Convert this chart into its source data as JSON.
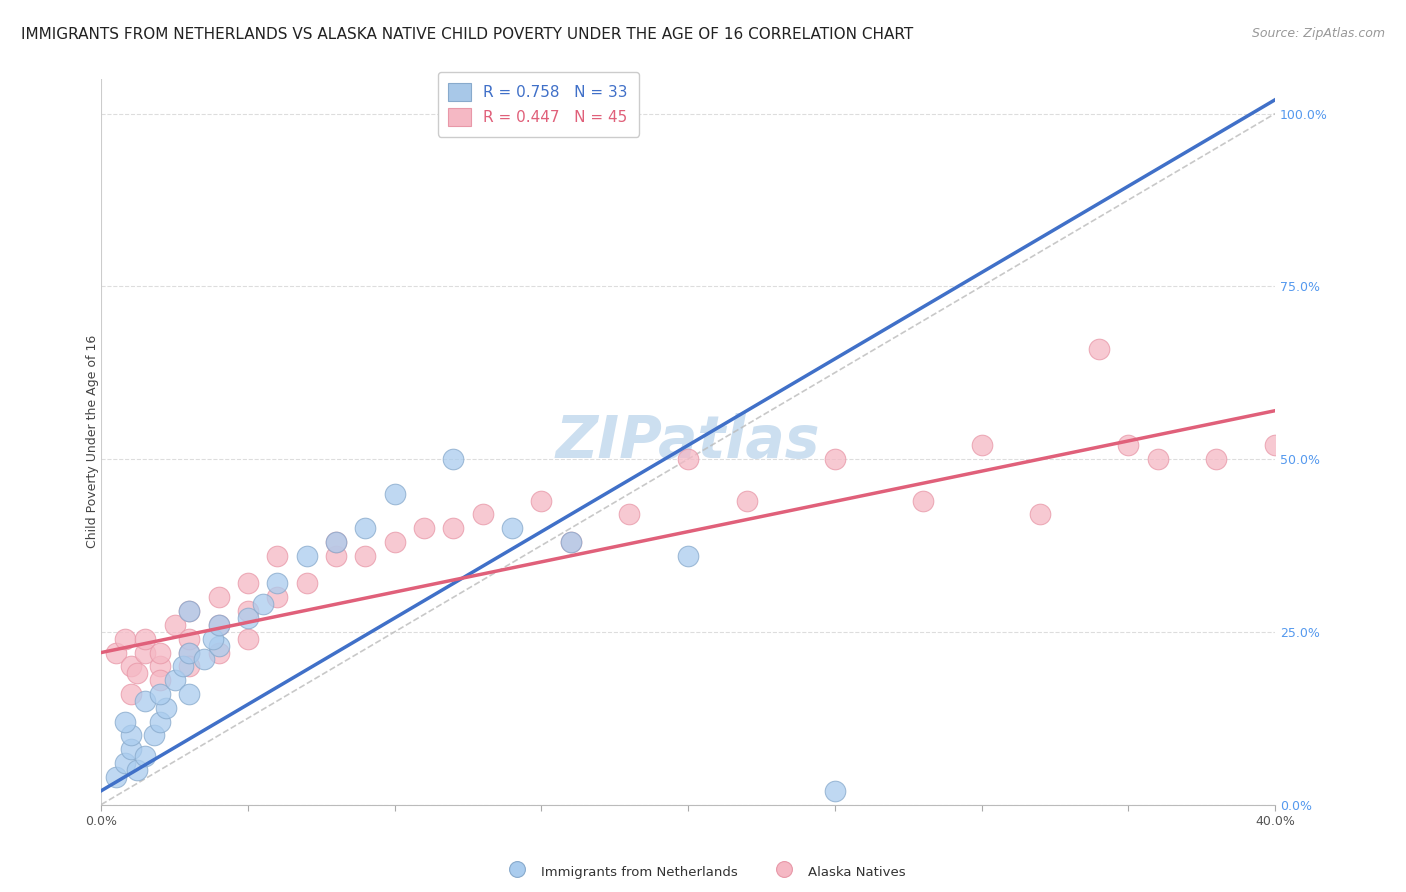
{
  "title": "IMMIGRANTS FROM NETHERLANDS VS ALASKA NATIVE CHILD POVERTY UNDER THE AGE OF 16 CORRELATION CHART",
  "source": "Source: ZipAtlas.com",
  "ylabel": "Child Poverty Under the Age of 16",
  "ylabel_right_ticks": [
    "0.0%",
    "25.0%",
    "50.0%",
    "75.0%",
    "100.0%"
  ],
  "ylabel_right_vals": [
    0.0,
    0.25,
    0.5,
    0.75,
    1.0
  ],
  "legend1_label": "R = 0.758   N = 33",
  "legend2_label": "R = 0.447   N = 45",
  "legend1_color": "#a8c8e8",
  "legend2_color": "#f5b8c4",
  "line1_color": "#4070c8",
  "line2_color": "#e0607a",
  "diag_color": "#bbbbbb",
  "scatter1_color": "#aaccee",
  "scatter2_color": "#f5b8c4",
  "scatter1_edge": "#88aacc",
  "scatter2_edge": "#e898a8",
  "watermark": "ZIPatlas",
  "blue_points_x": [
    0.0005,
    0.0008,
    0.001,
    0.0012,
    0.0015,
    0.001,
    0.0008,
    0.0018,
    0.002,
    0.0022,
    0.0015,
    0.002,
    0.0025,
    0.003,
    0.0028,
    0.003,
    0.0035,
    0.004,
    0.0038,
    0.004,
    0.003,
    0.005,
    0.0055,
    0.006,
    0.007,
    0.008,
    0.009,
    0.01,
    0.012,
    0.014,
    0.016,
    0.02,
    0.025
  ],
  "blue_points_y": [
    0.04,
    0.06,
    0.08,
    0.05,
    0.07,
    0.1,
    0.12,
    0.1,
    0.12,
    0.14,
    0.15,
    0.16,
    0.18,
    0.16,
    0.2,
    0.22,
    0.21,
    0.23,
    0.24,
    0.26,
    0.28,
    0.27,
    0.29,
    0.32,
    0.36,
    0.38,
    0.4,
    0.45,
    0.5,
    0.4,
    0.38,
    0.36,
    0.02
  ],
  "pink_points_x": [
    0.0005,
    0.0008,
    0.001,
    0.001,
    0.0012,
    0.0015,
    0.0015,
    0.002,
    0.002,
    0.002,
    0.0025,
    0.003,
    0.003,
    0.003,
    0.003,
    0.004,
    0.004,
    0.004,
    0.005,
    0.005,
    0.005,
    0.006,
    0.006,
    0.007,
    0.008,
    0.008,
    0.009,
    0.01,
    0.011,
    0.012,
    0.013,
    0.015,
    0.016,
    0.018,
    0.02,
    0.022,
    0.025,
    0.028,
    0.03,
    0.032,
    0.034,
    0.036,
    0.035,
    0.038,
    0.04
  ],
  "pink_points_y": [
    0.22,
    0.24,
    0.2,
    0.16,
    0.19,
    0.22,
    0.24,
    0.2,
    0.22,
    0.18,
    0.26,
    0.22,
    0.24,
    0.28,
    0.2,
    0.26,
    0.3,
    0.22,
    0.24,
    0.28,
    0.32,
    0.3,
    0.36,
    0.32,
    0.36,
    0.38,
    0.36,
    0.38,
    0.4,
    0.4,
    0.42,
    0.44,
    0.38,
    0.42,
    0.5,
    0.44,
    0.5,
    0.44,
    0.52,
    0.42,
    0.66,
    0.5,
    0.52,
    0.5,
    0.52
  ],
  "xlim": [
    0.0,
    0.04
  ],
  "ylim": [
    0.0,
    1.05
  ],
  "blue_line_x0": 0.0,
  "blue_line_y0": 0.02,
  "blue_line_x1": 0.04,
  "blue_line_y1": 1.02,
  "pink_line_x0": 0.0,
  "pink_line_y0": 0.22,
  "pink_line_x1": 0.04,
  "pink_line_y1": 0.57,
  "title_fontsize": 11,
  "source_fontsize": 9,
  "axis_label_fontsize": 9,
  "tick_fontsize": 9,
  "legend_fontsize": 11,
  "watermark_fontsize": 42,
  "watermark_color": "#ccdff0",
  "background_color": "#ffffff",
  "grid_color": "#dddddd",
  "bottom_legend1": "Immigrants from Netherlands",
  "bottom_legend2": "Alaska Natives"
}
